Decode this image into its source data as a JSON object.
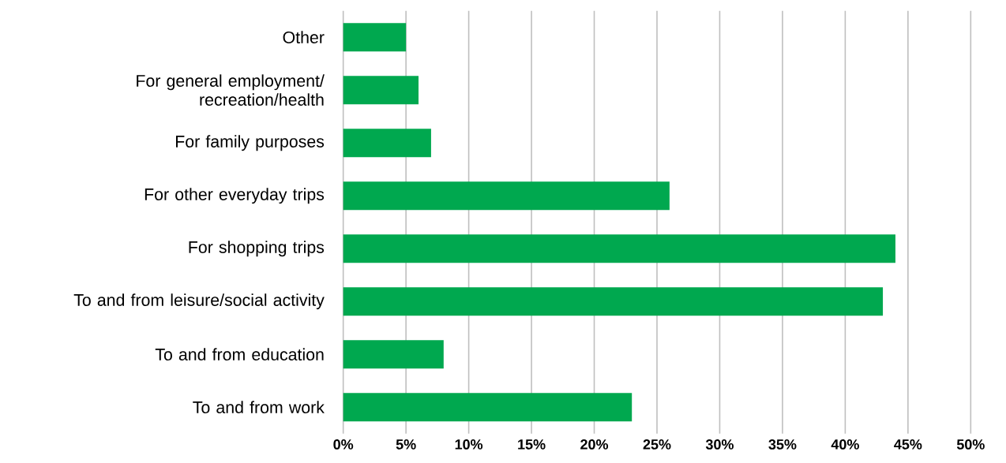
{
  "chart_data": {
    "type": "bar",
    "orientation": "horizontal",
    "categories": [
      "Other",
      "For general employment/ recreation/health",
      "For family purposes",
      "For other everyday trips",
      "For shopping trips",
      "To and from leisure/social activity",
      "To and from education",
      "To and from work"
    ],
    "values": [
      5,
      6,
      7,
      26,
      44,
      43,
      8,
      23
    ],
    "color": "#00a84f",
    "xlim": [
      0,
      50
    ],
    "xticks": [
      {
        "value": 0,
        "label": "0%"
      },
      {
        "value": 5,
        "label": "5%"
      },
      {
        "value": 10,
        "label": "10%"
      },
      {
        "value": 15,
        "label": "15%"
      },
      {
        "value": 20,
        "label": "20%"
      },
      {
        "value": 25,
        "label": "25%"
      },
      {
        "value": 30,
        "label": "30%"
      },
      {
        "value": 35,
        "label": "35%"
      },
      {
        "value": 40,
        "label": "40%"
      },
      {
        "value": 45,
        "label": "45%"
      },
      {
        "value": 50,
        "label": "50%"
      }
    ],
    "grid": "x"
  }
}
